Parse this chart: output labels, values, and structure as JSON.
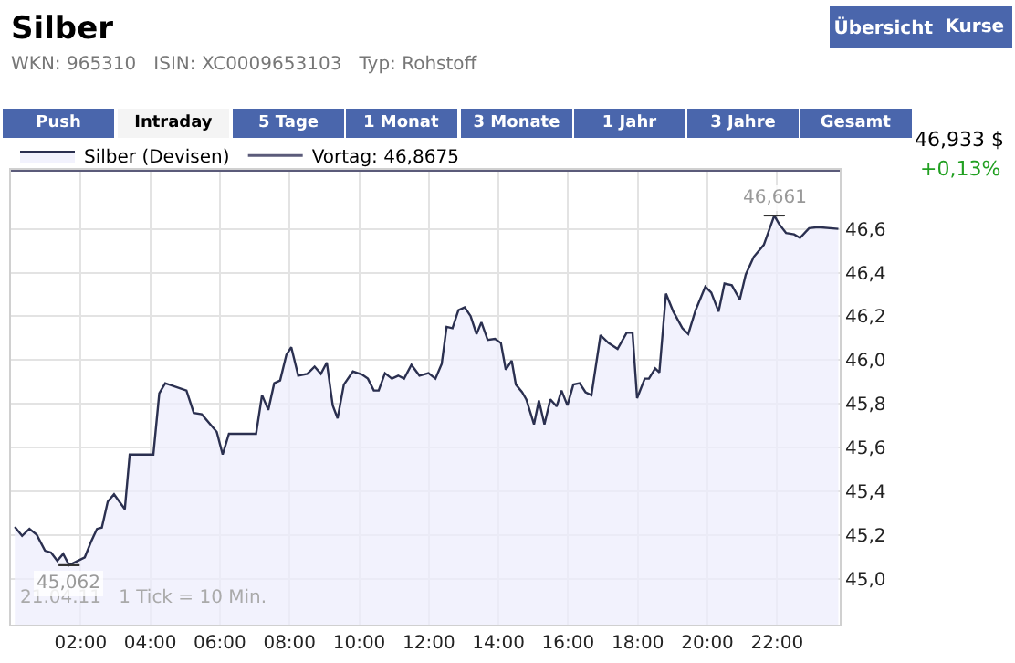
{
  "chart_data": {
    "type": "area",
    "title": "Silber",
    "subtitle": "WKN: 965310   ISIN: XC0009653103   Typ: Rohstoff",
    "x": [
      0.11,
      0.32,
      0.53,
      0.74,
      0.98,
      1.15,
      1.33,
      1.5,
      1.67,
      1.92,
      2.12,
      2.3,
      2.47,
      2.61,
      2.78,
      2.96,
      3.27,
      3.41,
      4.09,
      4.26,
      4.43,
      5.04,
      5.25,
      5.48,
      5.91,
      6.08,
      6.26,
      7.04,
      7.21,
      7.39,
      7.56,
      7.73,
      7.91,
      8.05,
      8.25,
      8.51,
      8.72,
      8.9,
      9.07,
      9.24,
      9.38,
      9.56,
      9.82,
      10.08,
      10.25,
      10.42,
      10.56,
      10.74,
      10.94,
      11.12,
      11.29,
      11.5,
      11.73,
      11.99,
      12.19,
      12.37,
      12.51,
      12.68,
      12.85,
      13.03,
      13.2,
      13.37,
      13.51,
      13.69,
      13.9,
      14.07,
      14.21,
      14.38,
      14.5,
      14.68,
      14.8,
      15.02,
      15.16,
      15.32,
      15.49,
      15.67,
      15.81,
      15.98,
      16.15,
      16.33,
      16.5,
      16.67,
      16.93,
      17.16,
      17.42,
      17.68,
      17.85,
      17.98,
      18.2,
      18.32,
      18.5,
      18.62,
      18.81,
      19.02,
      19.28,
      19.45,
      19.66,
      19.94,
      20.11,
      20.32,
      20.49,
      20.7,
      20.93,
      21.1,
      21.33,
      21.62,
      21.92,
      22.06,
      22.26,
      22.49,
      22.66,
      22.92,
      23.18,
      23.76
    ],
    "series": [
      {
        "name": "Silber (Devisen)",
        "color": "#2b3050",
        "values": [
          45.237,
          45.196,
          45.228,
          45.201,
          45.128,
          45.12,
          45.082,
          45.114,
          45.062,
          45.082,
          45.098,
          45.169,
          45.228,
          45.234,
          45.353,
          45.386,
          45.318,
          45.568,
          45.568,
          45.848,
          45.894,
          45.861,
          45.758,
          45.752,
          45.671,
          45.568,
          45.663,
          45.663,
          45.84,
          45.772,
          45.894,
          45.907,
          46.024,
          46.059,
          45.929,
          45.937,
          45.97,
          45.937,
          45.989,
          45.793,
          45.734,
          45.888,
          45.948,
          45.934,
          45.915,
          45.861,
          45.861,
          45.94,
          45.915,
          45.929,
          45.915,
          45.978,
          45.929,
          45.94,
          45.915,
          45.983,
          46.152,
          46.146,
          46.228,
          46.241,
          46.201,
          46.119,
          46.173,
          46.092,
          46.097,
          46.078,
          45.956,
          45.997,
          45.888,
          45.853,
          45.82,
          45.706,
          45.815,
          45.706,
          45.82,
          45.788,
          45.861,
          45.793,
          45.888,
          45.894,
          45.853,
          45.84,
          46.114,
          46.078,
          46.051,
          46.125,
          46.125,
          45.826,
          45.915,
          45.915,
          45.962,
          45.943,
          46.304,
          46.222,
          46.146,
          46.119,
          46.228,
          46.336,
          46.309,
          46.222,
          46.35,
          46.342,
          46.277,
          46.391,
          46.472,
          46.527,
          46.661,
          46.622,
          46.581,
          46.575,
          46.559,
          46.603,
          46.608,
          46.6
        ]
      }
    ],
    "ref_lines": [
      {
        "axis": "y",
        "value": 46.8675,
        "label": "Vortag: 46,8675",
        "color": "#5b5b7a"
      }
    ],
    "xlim": [
      0,
      23.8
    ],
    "xticks": [
      {
        "value": 2,
        "label": "02:00"
      },
      {
        "value": 4,
        "label": "04:00"
      },
      {
        "value": 6,
        "label": "06:00"
      },
      {
        "value": 8,
        "label": "08:00"
      },
      {
        "value": 10,
        "label": "10:00"
      },
      {
        "value": 12,
        "label": "12:00"
      },
      {
        "value": 14,
        "label": "14:00"
      },
      {
        "value": 16,
        "label": "16:00"
      },
      {
        "value": 18,
        "label": "18:00"
      },
      {
        "value": 20,
        "label": "20:00"
      },
      {
        "value": 22,
        "label": "22:00"
      }
    ],
    "ylim": [
      44.79,
      46.87
    ],
    "yticks": [
      {
        "value": 45.0,
        "label": "45,0"
      },
      {
        "value": 45.2,
        "label": "45,2"
      },
      {
        "value": 45.4,
        "label": "45,4"
      },
      {
        "value": 45.6,
        "label": "45,6"
      },
      {
        "value": 45.8,
        "label": "45,8"
      },
      {
        "value": 46.0,
        "label": "46,0"
      },
      {
        "value": 46.2,
        "label": "46,2"
      },
      {
        "value": 46.4,
        "label": "46,4"
      },
      {
        "value": 46.6,
        "label": "46,6"
      }
    ],
    "grid": true,
    "legend": "top left",
    "marker": "none",
    "line_style": "solid",
    "annotations": [
      "Übersicht",
      "Kurse",
      "Push",
      "Intraday",
      "5 Tage",
      "1 Monat",
      "3 Monate",
      "1 Jahr",
      "3 Jahre",
      "Gesamt",
      "46,933 $",
      "+0,13%",
      "21.04.11   1 Tick = 10 Min.",
      {
        "text": "46,661",
        "x": 21.92,
        "y": 46.661
      },
      {
        "text": "45,062",
        "x": 1.67,
        "y": 45.062
      }
    ]
  }
}
